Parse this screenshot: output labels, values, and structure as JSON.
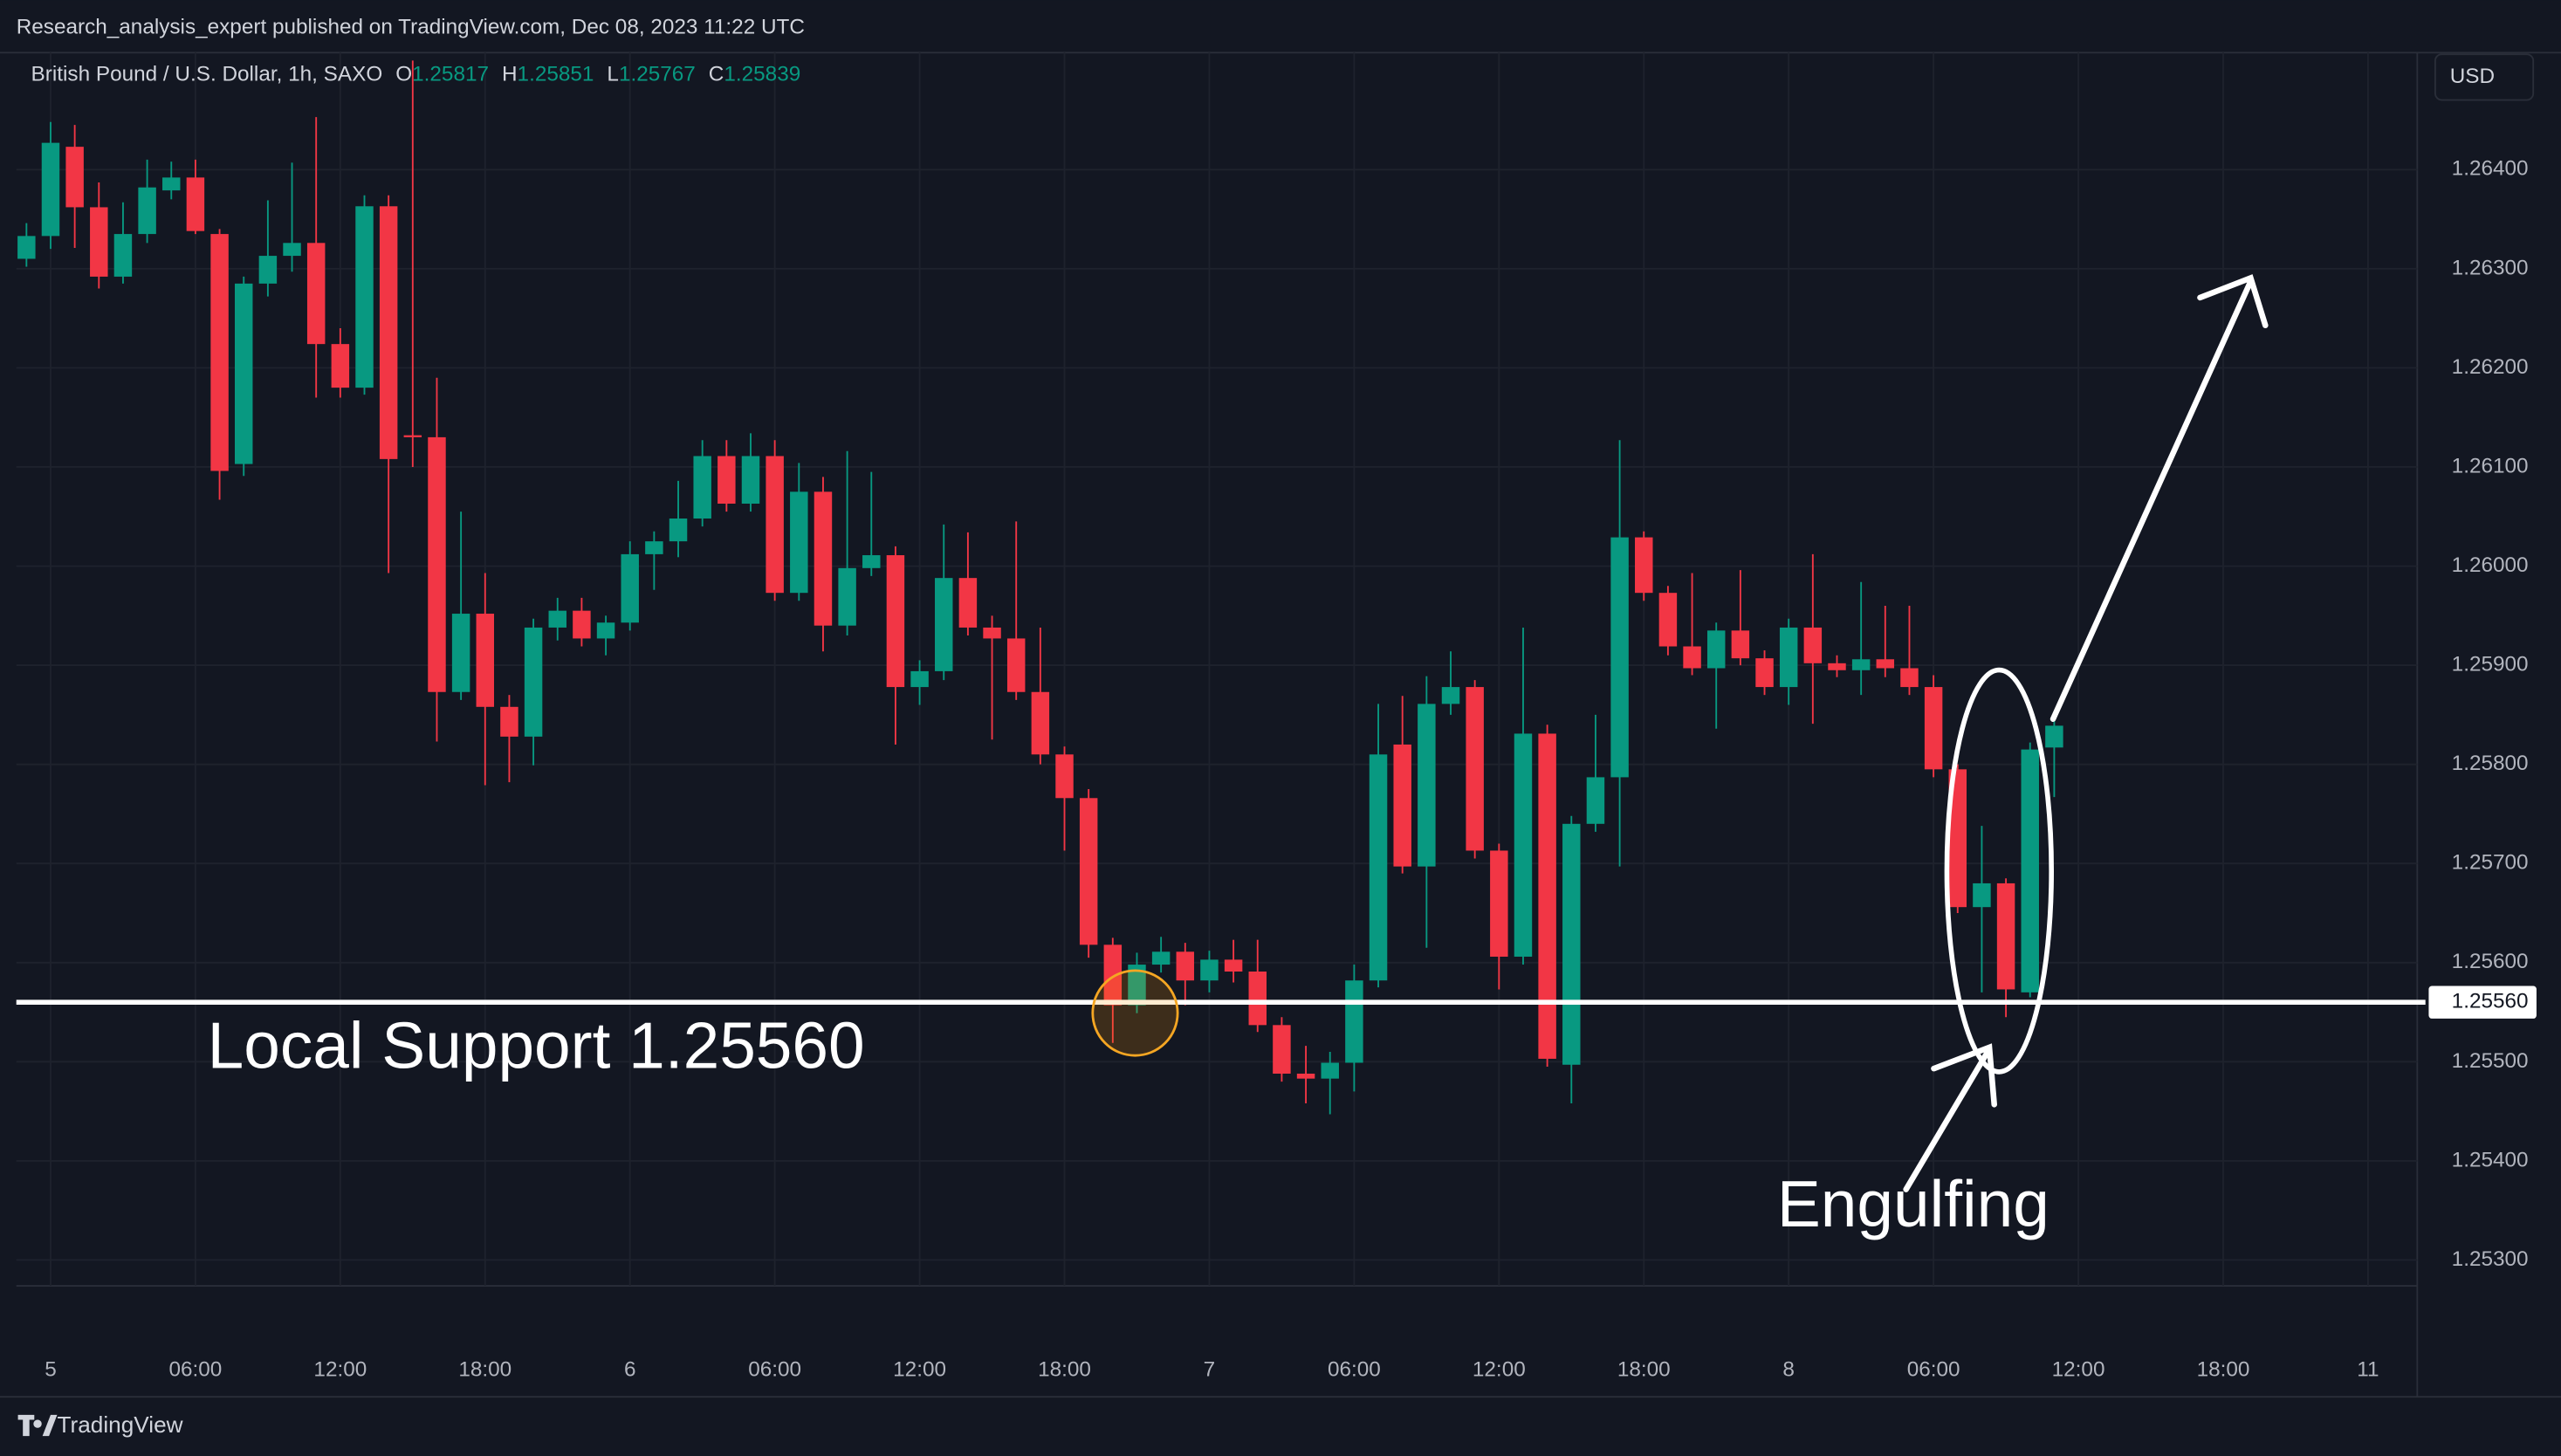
{
  "published": "Research_analysis_expert published on TradingView.com, Dec 08, 2023 11:22 UTC",
  "currency_button": "USD",
  "brand": "TradingView",
  "chart_data": {
    "type": "candlestick",
    "header": {
      "symbol": "British Pound / U.S. Dollar, 1h, SAXO",
      "open_label": "O",
      "open": 1.25817,
      "high_label": "H",
      "high": 1.25851,
      "low_label": "L",
      "low": 1.25767,
      "close_label": "C",
      "close": 1.25839
    },
    "up_color": "#089981",
    "down_color": "#f23645",
    "x": [
      -1,
      0,
      1,
      2,
      3,
      4,
      5,
      6,
      7,
      8,
      9,
      10,
      11,
      12,
      13,
      14,
      15,
      16,
      17,
      18,
      19,
      20,
      21,
      22,
      23,
      24,
      25,
      26,
      27,
      28,
      29,
      30,
      31,
      32,
      33,
      34,
      35,
      36,
      37,
      38,
      39,
      40,
      41,
      42,
      43,
      44,
      45,
      46,
      47,
      48,
      49,
      50,
      51,
      52,
      53,
      54,
      55,
      56,
      57,
      58,
      59,
      60,
      61,
      62,
      63,
      64,
      65,
      66,
      67,
      68,
      69,
      70,
      71,
      72,
      73,
      74,
      75,
      76,
      77,
      78,
      79,
      80,
      81,
      82,
      83
    ],
    "open": [
      1.2631,
      1.26333,
      1.26423,
      1.26362,
      1.26292,
      1.26335,
      1.26379,
      1.26392,
      1.26335,
      1.26103,
      1.26285,
      1.26313,
      1.26326,
      1.26224,
      1.2618,
      1.26363,
      1.26132,
      1.2613,
      1.25873,
      1.25952,
      1.25858,
      1.25828,
      1.25938,
      1.25955,
      1.25927,
      1.25943,
      1.26012,
      1.26025,
      1.26048,
      1.26111,
      1.26063,
      1.26111,
      1.25973,
      1.26075,
      1.2594,
      1.25998,
      1.26011,
      1.25878,
      1.25894,
      1.25988,
      1.25938,
      1.25927,
      1.25873,
      1.2581,
      1.25766,
      1.25618,
      1.25557,
      1.25598,
      1.25611,
      1.25582,
      1.25603,
      1.25591,
      1.25537,
      1.25488,
      1.25483,
      1.25499,
      1.25582,
      1.2582,
      1.25697,
      1.25861,
      1.25878,
      1.25713,
      1.25606,
      1.25831,
      1.25497,
      1.2574,
      1.25787,
      1.26029,
      1.25973,
      1.25919,
      1.25897,
      1.25935,
      1.25907,
      1.25878,
      1.25938,
      1.25902,
      1.25895,
      1.25906,
      1.25897,
      1.25878,
      1.25795,
      1.25656,
      1.2568,
      1.2557,
      1.25817
    ],
    "high": [
      1.26346,
      1.26448,
      1.26445,
      1.26387,
      1.26367,
      1.2641,
      1.26408,
      1.2641,
      1.2634,
      1.26292,
      1.26369,
      1.26407,
      1.26453,
      1.2624,
      1.26374,
      1.26374,
      1.2651,
      1.2619,
      1.26055,
      1.25993,
      1.2587,
      1.25947,
      1.25968,
      1.25968,
      1.2595,
      1.26025,
      1.26035,
      1.26086,
      1.26127,
      1.26127,
      1.26134,
      1.26127,
      1.26104,
      1.2609,
      1.26116,
      1.26095,
      1.2602,
      1.25905,
      1.26042,
      1.26034,
      1.2595,
      1.26045,
      1.25938,
      1.25818,
      1.25775,
      1.25625,
      1.2561,
      1.25626,
      1.2562,
      1.25612,
      1.25623,
      1.25623,
      1.25545,
      1.25516,
      1.2551,
      1.25598,
      1.25861,
      1.25869,
      1.25889,
      1.25914,
      1.25885,
      1.2572,
      1.25938,
      1.2584,
      1.25748,
      1.2585,
      1.26127,
      1.26035,
      1.2598,
      1.25993,
      1.25943,
      1.25996,
      1.25915,
      1.25947,
      1.26012,
      1.2591,
      1.25984,
      1.2596,
      1.2596,
      1.2589,
      1.258,
      1.25738,
      1.25685,
      1.25822,
      1.25851
    ],
    "low": [
      1.26302,
      1.2632,
      1.26321,
      1.2628,
      1.26285,
      1.26326,
      1.2637,
      1.26335,
      1.26067,
      1.26091,
      1.26272,
      1.26297,
      1.2617,
      1.2617,
      1.26173,
      1.25993,
      1.261,
      1.25823,
      1.25865,
      1.25779,
      1.25782,
      1.25799,
      1.25925,
      1.25919,
      1.2591,
      1.25935,
      1.25976,
      1.26009,
      1.2604,
      1.26055,
      1.26055,
      1.25965,
      1.25965,
      1.25914,
      1.2593,
      1.2599,
      1.2582,
      1.2586,
      1.25885,
      1.2593,
      1.25825,
      1.25865,
      1.258,
      1.25713,
      1.25605,
      1.25519,
      1.25549,
      1.2559,
      1.25557,
      1.2557,
      1.2558,
      1.2553,
      1.2548,
      1.25458,
      1.25447,
      1.2547,
      1.25575,
      1.2569,
      1.25615,
      1.2585,
      1.25705,
      1.25573,
      1.25598,
      1.25495,
      1.25458,
      1.25732,
      1.25697,
      1.25965,
      1.2591,
      1.2589,
      1.25836,
      1.259,
      1.2587,
      1.2586,
      1.25841,
      1.25888,
      1.2587,
      1.25888,
      1.2587,
      1.25787,
      1.2565,
      1.2557,
      1.25545,
      1.25565,
      1.25767
    ],
    "close": [
      1.26333,
      1.26427,
      1.26362,
      1.26292,
      1.26335,
      1.26382,
      1.26392,
      1.26338,
      1.26096,
      1.26285,
      1.26313,
      1.26326,
      1.26224,
      1.2618,
      1.26363,
      1.26108,
      1.2613,
      1.25873,
      1.25952,
      1.25858,
      1.25828,
      1.25938,
      1.25955,
      1.25927,
      1.25943,
      1.26012,
      1.26025,
      1.26048,
      1.26111,
      1.26063,
      1.26111,
      1.25973,
      1.26075,
      1.2594,
      1.25998,
      1.26011,
      1.25878,
      1.25894,
      1.25988,
      1.25938,
      1.25927,
      1.25873,
      1.2581,
      1.25766,
      1.25618,
      1.25557,
      1.25598,
      1.25611,
      1.25582,
      1.25603,
      1.25591,
      1.25537,
      1.25488,
      1.25483,
      1.25499,
      1.25582,
      1.2581,
      1.25697,
      1.25861,
      1.25878,
      1.25713,
      1.25606,
      1.25831,
      1.25503,
      1.2574,
      1.25787,
      1.26029,
      1.25973,
      1.25919,
      1.25897,
      1.25935,
      1.25907,
      1.25878,
      1.25938,
      1.25902,
      1.25895,
      1.25906,
      1.25897,
      1.25878,
      1.25795,
      1.25656,
      1.2568,
      1.25573,
      1.25815,
      1.25839
    ],
    "xlim": [
      -1.42,
      98.04
    ],
    "xticks": [
      {
        "value": 0,
        "label": "5"
      },
      {
        "value": 6,
        "label": "06:00"
      },
      {
        "value": 12,
        "label": "12:00"
      },
      {
        "value": 18,
        "label": "18:00"
      },
      {
        "value": 24,
        "label": "6"
      },
      {
        "value": 30,
        "label": "06:00"
      },
      {
        "value": 36,
        "label": "12:00"
      },
      {
        "value": 42,
        "label": "18:00"
      },
      {
        "value": 48,
        "label": "7"
      },
      {
        "value": 54,
        "label": "06:00"
      },
      {
        "value": 60,
        "label": "12:00"
      },
      {
        "value": 66,
        "label": "18:00"
      },
      {
        "value": 72,
        "label": "8"
      },
      {
        "value": 78,
        "label": "06:00"
      },
      {
        "value": 84,
        "label": "12:00"
      },
      {
        "value": 90,
        "label": "18:00"
      },
      {
        "value": 96,
        "label": "11"
      }
    ],
    "ylim": [
      1.25274,
      1.26518
    ],
    "yticks": [
      {
        "value": 1.253,
        "label": "1.25300"
      },
      {
        "value": 1.254,
        "label": "1.25400"
      },
      {
        "value": 1.255,
        "label": "1.25500"
      },
      {
        "value": 1.256,
        "label": "1.25600"
      },
      {
        "value": 1.257,
        "label": "1.25700"
      },
      {
        "value": 1.258,
        "label": "1.25800"
      },
      {
        "value": 1.259,
        "label": "1.25900"
      },
      {
        "value": 1.26,
        "label": "1.26000"
      },
      {
        "value": 1.261,
        "label": "1.26100"
      },
      {
        "value": 1.262,
        "label": "1.26200"
      },
      {
        "value": 1.263,
        "label": "1.26300"
      },
      {
        "value": 1.264,
        "label": "1.26400"
      }
    ],
    "grid": true,
    "support_line": {
      "value": 1.2556,
      "label": "1.25560"
    },
    "annotations": {
      "support": "Local Support 1.25560",
      "pattern": "Engulfing"
    }
  }
}
